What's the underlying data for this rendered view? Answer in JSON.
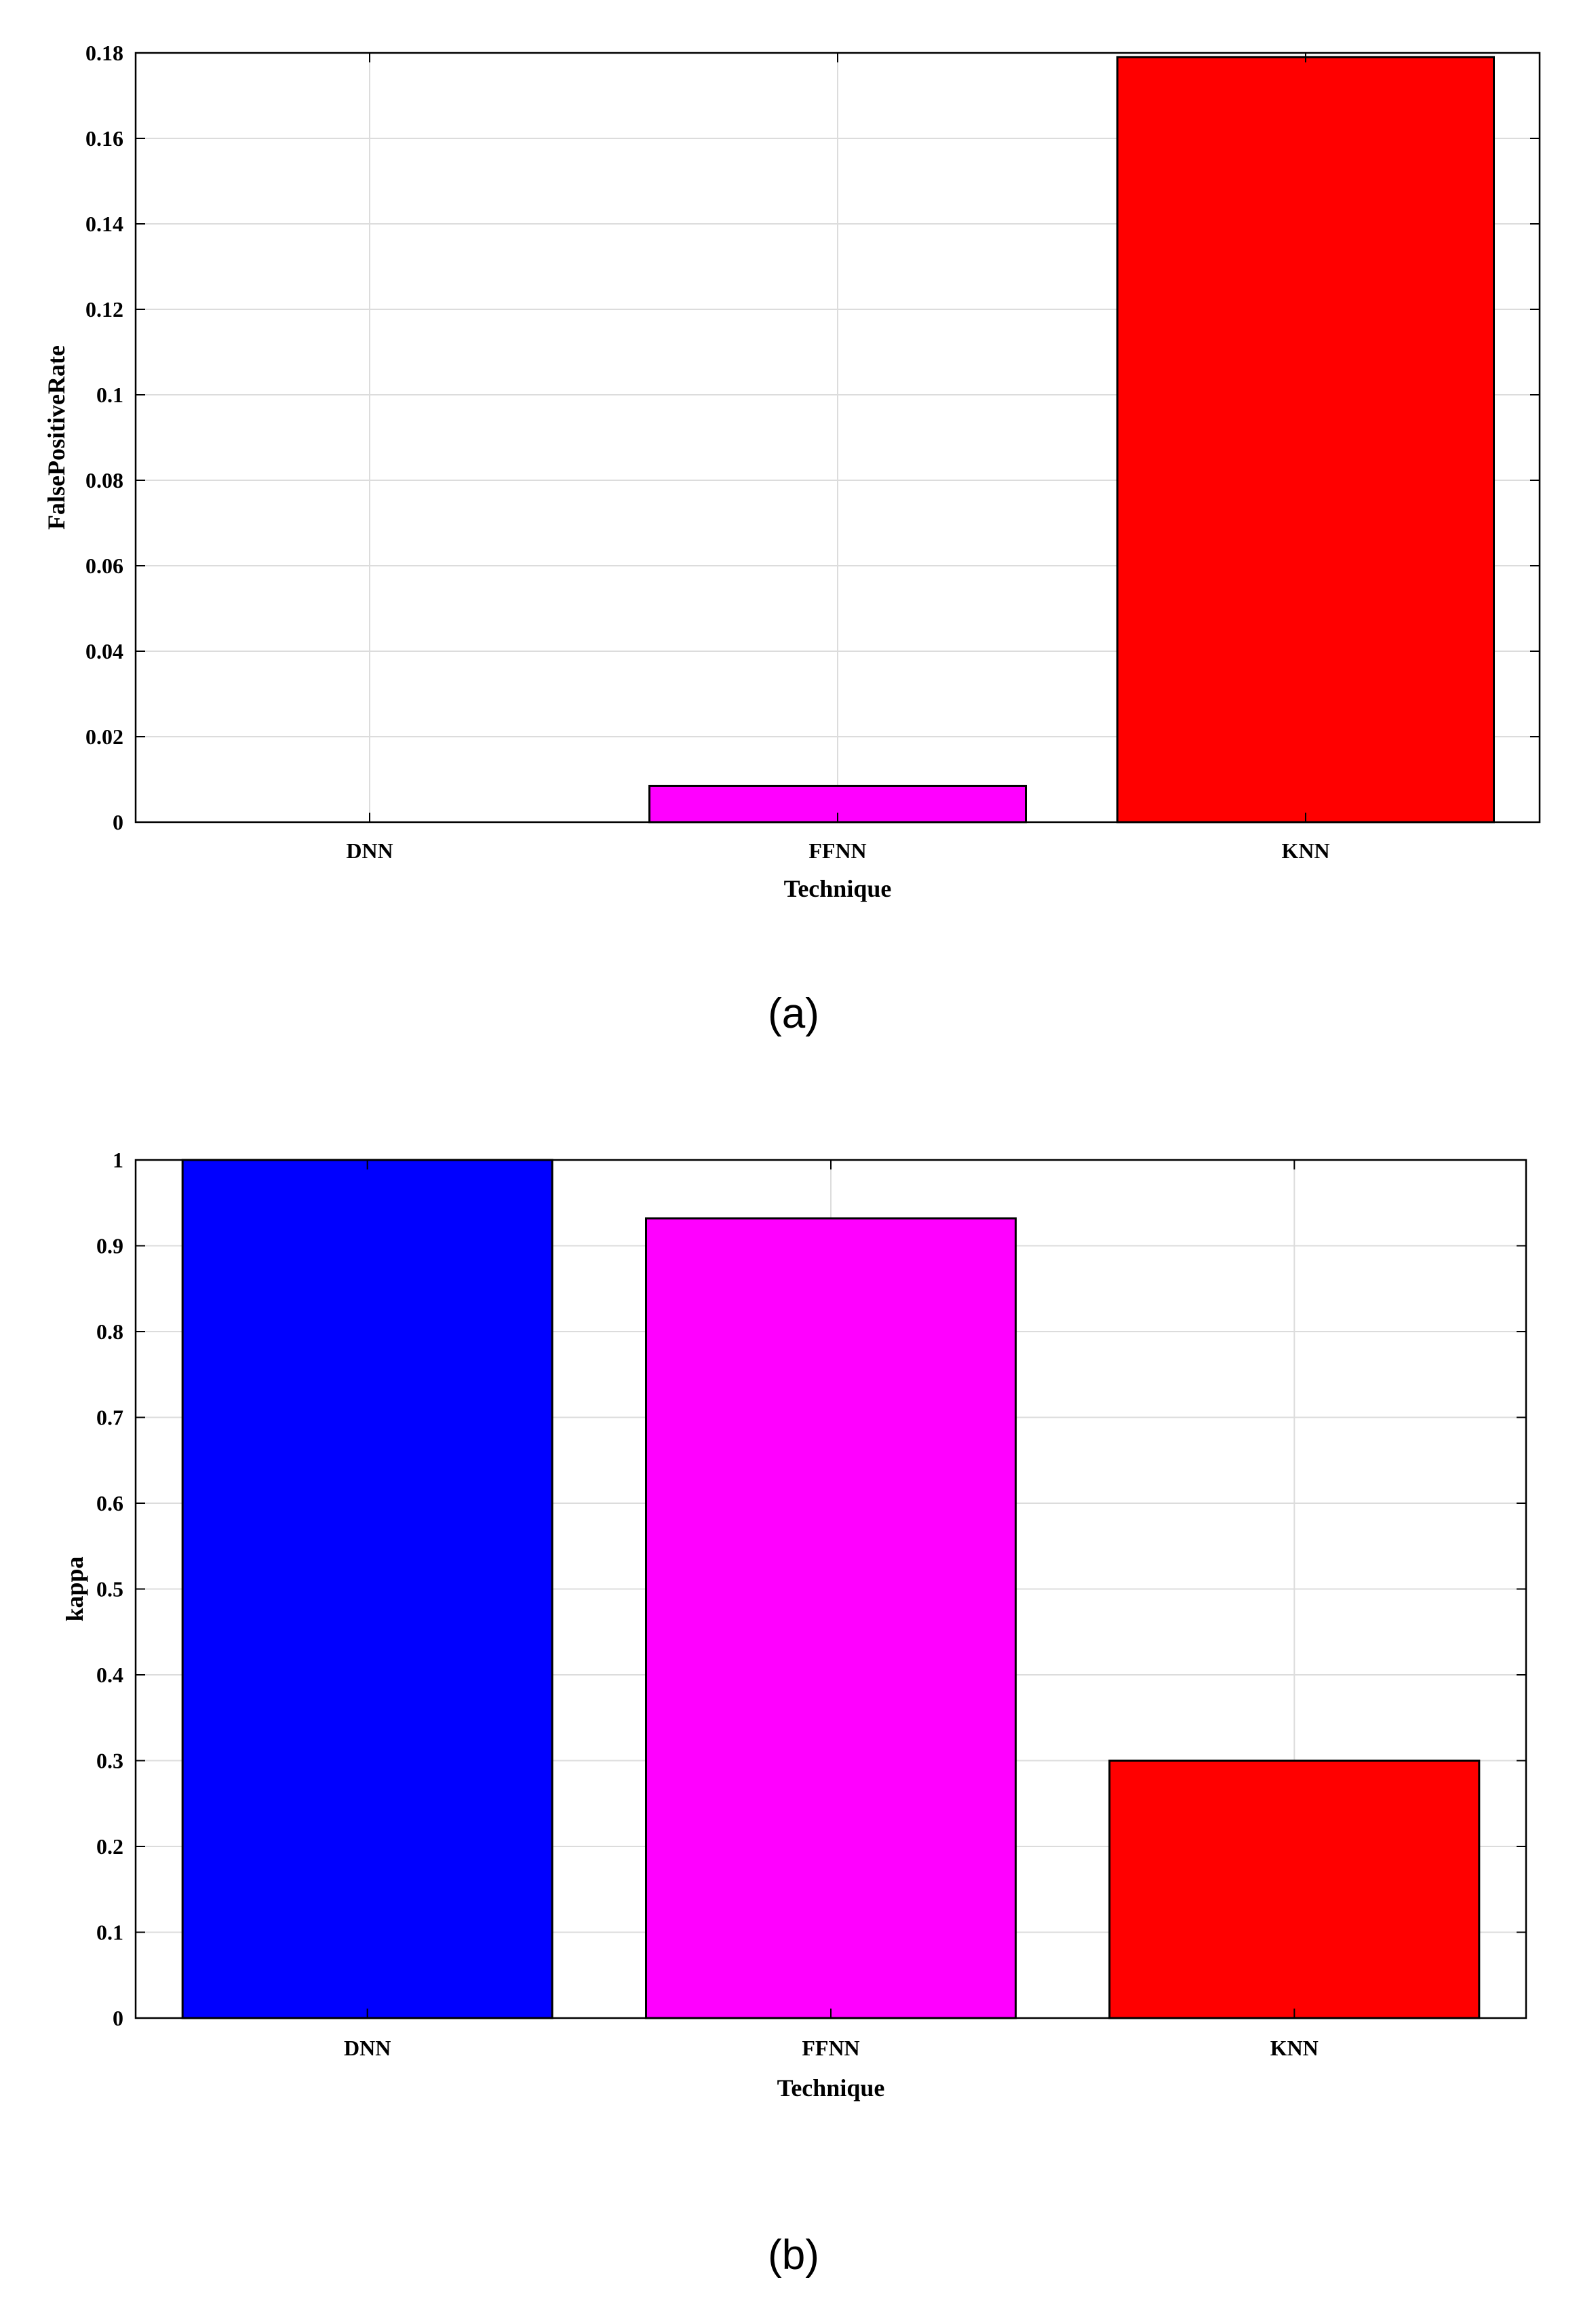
{
  "chart_data": [
    {
      "type": "bar",
      "categories": [
        "DNN",
        "FFNN",
        "KNN"
      ],
      "values": [
        0,
        0.0085,
        0.179
      ],
      "colors": [
        "#0000ff",
        "#ff00ff",
        "#ff0000"
      ],
      "xlabel": "Technique",
      "ylabel": "FalsePositiveRate",
      "ylim": [
        0,
        0.18
      ],
      "yticks": [
        "0",
        "0.02",
        "0.04",
        "0.06",
        "0.08",
        "0.1",
        "0.12",
        "0.14",
        "0.16",
        "0.18"
      ],
      "grid": true,
      "caption": "(a)"
    },
    {
      "type": "bar",
      "categories": [
        "DNN",
        "FFNN",
        "KNN"
      ],
      "values": [
        1.0,
        0.932,
        0.3
      ],
      "colors": [
        "#0000ff",
        "#ff00ff",
        "#ff0000"
      ],
      "xlabel": "Technique",
      "ylabel": "kappa",
      "ylim": [
        0,
        1
      ],
      "yticks": [
        "0",
        "0.1",
        "0.2",
        "0.3",
        "0.4",
        "0.5",
        "0.6",
        "0.7",
        "0.8",
        "0.9",
        "1"
      ],
      "grid": true,
      "caption": "(b)"
    }
  ]
}
